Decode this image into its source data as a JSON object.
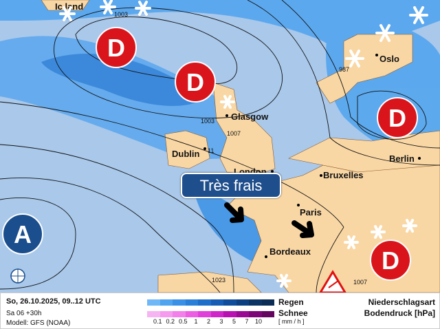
{
  "map": {
    "cities": [
      {
        "name": "Ic land"
      },
      {
        "name": "Oslo"
      },
      {
        "name": "Glasgow"
      },
      {
        "name": "Dublin"
      },
      {
        "name": "London"
      },
      {
        "name": "Bruxelles"
      },
      {
        "name": "Berlin"
      },
      {
        "name": "Paris"
      },
      {
        "name": "Bordeaux"
      }
    ],
    "isobar_labels": [
      "1003",
      "987",
      "1003",
      "1007",
      "11",
      "1023",
      "1007"
    ],
    "pressure_systems": {
      "low": "D",
      "high": "A"
    },
    "banner": "Très frais",
    "colors": {
      "sea": "#a9c8ea",
      "land": "#f9d7a5",
      "low": "#d9141b",
      "high": "#1a4e8c"
    },
    "icons": [
      "snowflake-icon",
      "wind-arrow-icon",
      "warning-triangle-icon",
      "globe-icon"
    ]
  },
  "legend": {
    "date": "So, 26.10.2025, 09..12 UTC",
    "run": "Sa 06 +30h",
    "model": "Modell: GFS (NOAA)",
    "rain_label": "Regen",
    "snow_label": "Schnee",
    "unit": "[ mm / h ]",
    "ticks": [
      "0.1",
      "0.2",
      "0.5",
      "1",
      "2",
      "3",
      "5",
      "7",
      "10"
    ],
    "rain_colors": [
      "#6fb7f7",
      "#4fa3ef",
      "#3a90e6",
      "#2a7fd9",
      "#1f6ec9",
      "#175db5",
      "#104c9c",
      "#0c3f82",
      "#0b3465",
      "#0a2c55"
    ],
    "snow_colors": [
      "#f7b4f3",
      "#f59aef",
      "#f27fea",
      "#ec5fe3",
      "#e040da",
      "#cf26c9",
      "#b811b1",
      "#9a0994",
      "#7d0677",
      "#640560"
    ],
    "title1": "Niederschlagsart",
    "title2": "Bodendruck [hPa]"
  }
}
